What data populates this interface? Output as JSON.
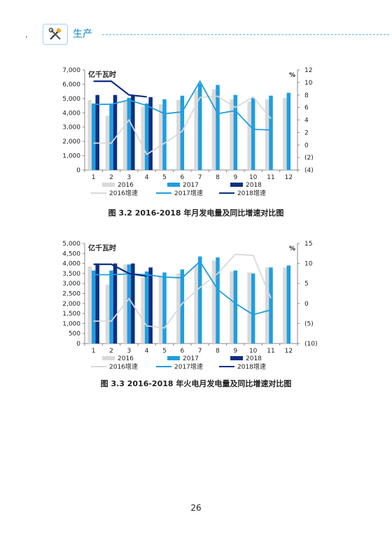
{
  "header": {
    "section_title": "生产",
    "icon": "tools-icon"
  },
  "colors": {
    "s2016": "#d9d9d9",
    "s2017": "#1f9ee0",
    "s2018": "#0d2f82",
    "g2016": "#d9d9d9",
    "g2017": "#1f9ee0",
    "g2018": "#0d2f82"
  },
  "charts": [
    {
      "caption": "图 3.2   2016-2018 年月发电量及同比增速对比图",
      "chart_data": {
        "type": "bar",
        "categories": [
          "1",
          "2",
          "3",
          "4",
          "5",
          "6",
          "7",
          "8",
          "9",
          "10",
          "11",
          "12"
        ],
        "series": [
          {
            "name": "2016",
            "kind": "bar",
            "axis": "left",
            "values": [
              4900,
              3800,
              4800,
              4450,
              4600,
              4900,
              5600,
              5650,
              4950,
              4800,
              4950,
              5050
            ]
          },
          {
            "name": "2017",
            "kind": "bar",
            "axis": "left",
            "values": [
              4650,
              4650,
              5050,
              4650,
              4950,
              5200,
              6050,
              5950,
              5250,
              5050,
              5200,
              5400
            ]
          },
          {
            "name": "2018",
            "kind": "bar",
            "axis": "left",
            "values": [
              5250,
              5250,
              5250,
              5100,
              null,
              null,
              null,
              null,
              null,
              null,
              null,
              null
            ]
          },
          {
            "name": "2016增速",
            "kind": "line",
            "axis": "right",
            "values": [
              0.3,
              0.3,
              4.0,
              -1.5,
              0.3,
              2.2,
              7.6,
              7.8,
              6.0,
              7.7,
              4.2,
              null
            ]
          },
          {
            "name": "2017增速",
            "kind": "line",
            "axis": "right",
            "values": [
              6.5,
              6.5,
              7.2,
              6.3,
              5.0,
              5.3,
              10.2,
              5.0,
              5.5,
              2.5,
              2.4,
              null
            ]
          },
          {
            "name": "2018增速",
            "kind": "line",
            "axis": "right",
            "values": [
              10.2,
              10.2,
              8.0,
              7.7,
              null,
              null,
              null,
              null,
              null,
              null,
              null,
              null
            ]
          }
        ],
        "left_axis": {
          "label": "亿千瓦时",
          "ylim": [
            0,
            7000
          ],
          "ticks": [
            "0",
            "1,000",
            "2,000",
            "3,000",
            "4,000",
            "5,000",
            "6,000",
            "7,000"
          ]
        },
        "right_axis": {
          "label": "%",
          "ylim": [
            -4,
            12
          ],
          "ticks": [
            "(4)",
            "(2)",
            "0",
            "2",
            "4",
            "6",
            "8",
            "10",
            "12"
          ]
        },
        "legend_placement": "bottom",
        "grid": false
      }
    },
    {
      "caption": "图 3.3   2016-2018 年火电月发电量及同比增速对比图",
      "chart_data": {
        "type": "bar",
        "categories": [
          "1",
          "2",
          "3",
          "4",
          "5",
          "6",
          "7",
          "8",
          "9",
          "10",
          "11",
          "12"
        ],
        "series": [
          {
            "name": "2016",
            "kind": "bar",
            "axis": "left",
            "values": [
              3850,
              2950,
              3950,
              3300,
              3350,
              3500,
              3900,
              4150,
              3600,
              3550,
              3800,
              3800
            ]
          },
          {
            "name": "2017",
            "kind": "bar",
            "axis": "left",
            "values": [
              3650,
              3650,
              3950,
              3600,
              3550,
              3700,
              4350,
              4300,
              3650,
              3500,
              3800,
              3900
            ]
          },
          {
            "name": "2018",
            "kind": "bar",
            "axis": "left",
            "values": [
              4000,
              4000,
              4000,
              3800,
              null,
              null,
              null,
              null,
              null,
              null,
              null,
              null
            ]
          },
          {
            "name": "2016增速",
            "kind": "line",
            "axis": "right",
            "values": [
              -4.4,
              -4.4,
              1.2,
              -5.6,
              -6.1,
              0.0,
              4.0,
              7.5,
              12.3,
              12.0,
              1.3,
              null
            ]
          },
          {
            "name": "2017增速",
            "kind": "line",
            "axis": "right",
            "values": [
              7.2,
              7.2,
              7.4,
              7.2,
              6.6,
              6.4,
              10.5,
              3.5,
              0.0,
              -2.8,
              -1.6,
              null
            ]
          },
          {
            "name": "2018增速",
            "kind": "line",
            "axis": "right",
            "values": [
              9.8,
              9.8,
              7.5,
              6.8,
              null,
              null,
              null,
              null,
              null,
              null,
              null,
              null
            ]
          }
        ],
        "left_axis": {
          "label": "亿千瓦时",
          "ylim": [
            0,
            5000
          ],
          "ticks": [
            "0",
            "500",
            "1,000",
            "1,500",
            "2,000",
            "2,500",
            "3,000",
            "3,500",
            "4,000",
            "4,500",
            "5,000"
          ]
        },
        "right_axis": {
          "label": "%",
          "ylim": [
            -10,
            15
          ],
          "ticks": [
            "(10)",
            "(5)",
            "0",
            "5",
            "10",
            "15"
          ]
        },
        "legend_placement": "bottom",
        "grid": false
      }
    }
  ],
  "page_number": "26"
}
